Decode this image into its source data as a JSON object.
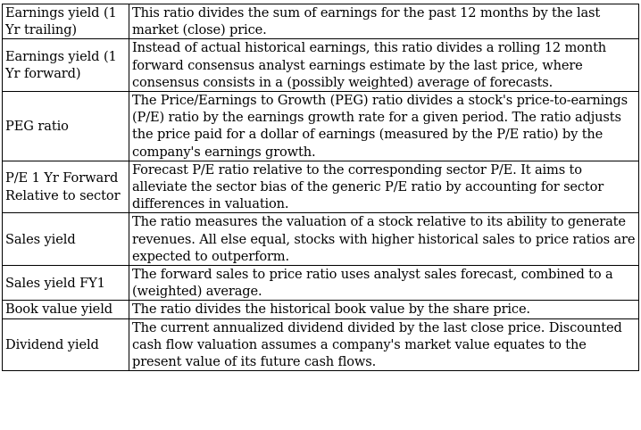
{
  "rows": [
    {
      "term": "Earnings yield (1 Yr trailing)",
      "description": "This ratio divides the sum of earnings for the past 12 months by the last market (close) price."
    },
    {
      "term": "Earnings yield (1 Yr forward)",
      "description": "Instead of actual historical earnings, this ratio divides a rolling 12 month forward consensus analyst earnings estimate by the last price, where consensus consists in a (possibly weighted) average of forecasts."
    },
    {
      "term": "PEG ratio",
      "description": "The Price/Earnings to Growth (PEG) ratio divides a stock's price-to-earnings (P/E) ratio by the earnings growth rate for a given period. The ratio adjusts the price paid for a dollar of earnings (measured by the P/E ratio) by the company's earnings growth."
    },
    {
      "term": "P/E 1 Yr Forward Relative to sector",
      "description": "Forecast P/E ratio relative to the corresponding sector P/E. It aims to alleviate the sector bias of the generic P/E ratio by accounting for sector differences in valuation."
    },
    {
      "term": "Sales yield",
      "description": "The ratio measures the valuation of a stock relative to its ability to generate revenues. All else equal, stocks with higher historical sales to price ratios are expected to outperform."
    },
    {
      "term": "Sales yield FY1",
      "description": "The forward sales to price ratio uses analyst sales forecast, combined to a (weighted) average."
    },
    {
      "term": "Book value yield",
      "description": "The ratio divides the historical book value by the share price."
    },
    {
      "term": "Dividend yield",
      "description": "The current annualized dividend divided by the last close price. Discounted cash flow valuation assumes a company's market value equates to the present value of its future cash flows."
    }
  ]
}
